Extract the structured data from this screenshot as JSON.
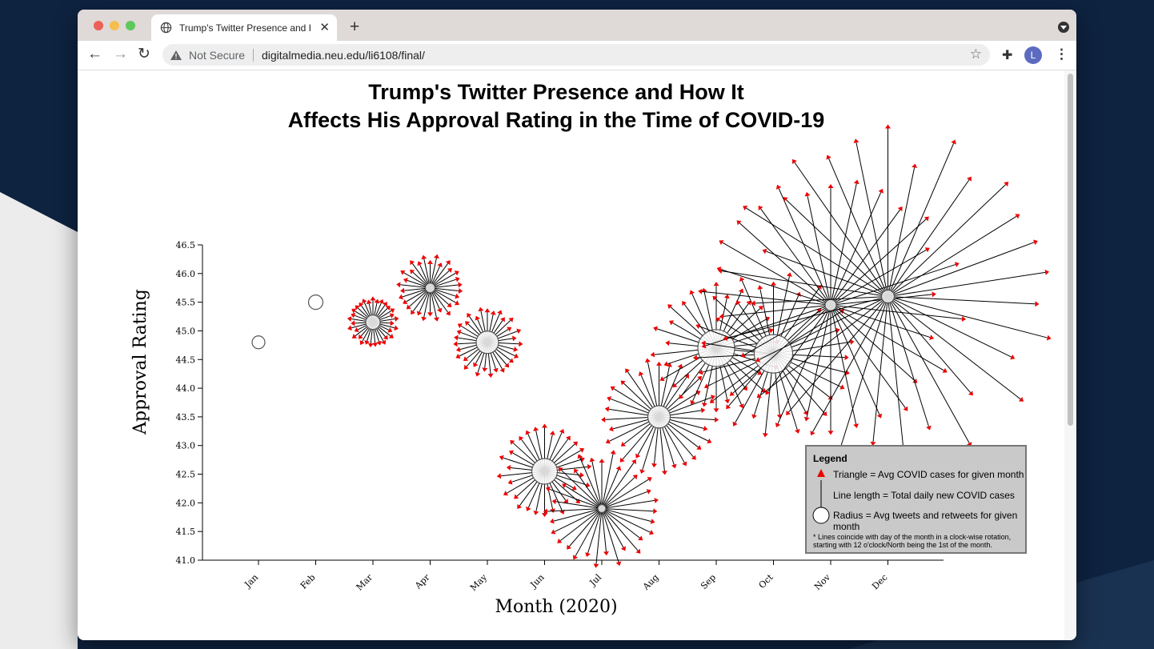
{
  "browser": {
    "tab_title": "Trump's Twitter Presence and How It Affects His Approval Rating in the Time of COVID-19",
    "security_label": "Not Secure",
    "url": "digitalmedia.neu.edu/li6108/final/",
    "avatar_letter": "L"
  },
  "page": {
    "title_line1": "Trump's Twitter Presence and How It",
    "title_line2": "Affects His Approval Rating in the Time of COVID-19"
  },
  "legend": {
    "title": "Legend",
    "triangle": "Triangle = Avg COVID cases for given month",
    "line": "Line length = Total daily new COVID cases",
    "radius": "Radius = Avg tweets and retweets for given month",
    "note": "* Lines coincide with day of the month in a clock-wise rotation, starting with 12 o'clock/North being the 1st of the month."
  },
  "chart_data": {
    "type": "scatter",
    "xlabel": "Month (2020)",
    "ylabel": "Approval Rating",
    "ylim": [
      41.0,
      46.5
    ],
    "yticks": [
      "41.0",
      "41.5",
      "42.0",
      "42.5",
      "43.0",
      "43.5",
      "44.0",
      "44.5",
      "45.0",
      "45.5",
      "46.0",
      "46.5"
    ],
    "categories": [
      "Jan",
      "Feb",
      "Mar",
      "Apr",
      "May",
      "Jun",
      "Jul",
      "Aug",
      "Sep",
      "Oct",
      "Nov",
      "Dec"
    ],
    "approval": [
      44.8,
      45.5,
      45.15,
      45.75,
      44.8,
      42.55,
      41.9,
      43.5,
      44.7,
      44.6,
      45.45,
      45.6
    ],
    "circle_radius": [
      8,
      9,
      9,
      6,
      14,
      16,
      5,
      14,
      23,
      24,
      7,
      8
    ],
    "spoke_length": [
      0,
      0,
      28,
      38,
      40,
      55,
      70,
      70,
      78,
      100,
      165,
      210
    ],
    "days": [
      31,
      29,
      31,
      30,
      31,
      30,
      31,
      31,
      30,
      31,
      30,
      31
    ],
    "colors": {
      "triangle": "#ee0000",
      "spoke": "#000000",
      "circle_fill": "#ffffff",
      "circle_stroke": "#555555"
    }
  }
}
